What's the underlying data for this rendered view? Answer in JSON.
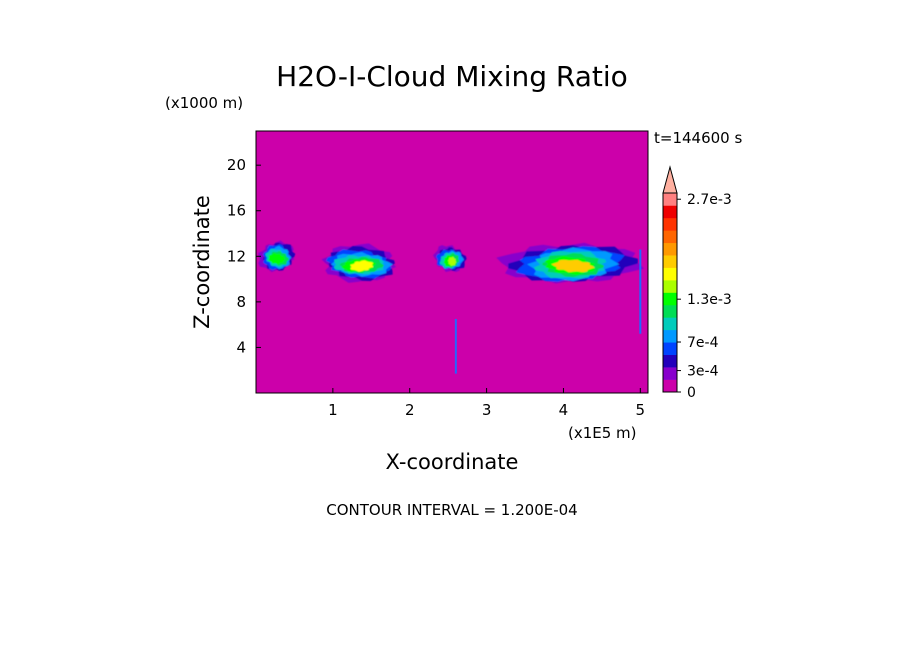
{
  "chart_data": {
    "type": "heatmap",
    "title": "H2O-I-Cloud Mixing Ratio",
    "xlabel": "X-coordinate",
    "ylabel": "Z-coordinate",
    "x_unit": "(x1E5 m)",
    "y_unit": "(x1000 m)",
    "time_label": "t=144600 s",
    "footer": "CONTOUR INTERVAL = 1.200E-04",
    "xlim": [
      0,
      5.1
    ],
    "ylim": [
      0,
      23
    ],
    "x_ticks": [
      1,
      2,
      3,
      4,
      5
    ],
    "y_ticks": [
      4,
      8,
      12,
      16,
      20
    ],
    "colorbar": {
      "ticks": [
        {
          "value": 0,
          "label": "0"
        },
        {
          "value": 0.0003,
          "label": "3e-4"
        },
        {
          "value": 0.0007,
          "label": "7e-4"
        },
        {
          "value": 0.0013,
          "label": "1.3e-3"
        },
        {
          "value": 0.0027,
          "label": "2.7e-3"
        }
      ],
      "colors": [
        "#cc00aa",
        "#8800cc",
        "#2200bb",
        "#0044ff",
        "#0099ff",
        "#00ccbb",
        "#00dd55",
        "#00ff00",
        "#aaff00",
        "#ffff00",
        "#ffcc00",
        "#ff9900",
        "#ff6600",
        "#ff3300",
        "#ee0000",
        "#ff8080"
      ],
      "extend": "max"
    },
    "background_color": "#cc00aa",
    "cloud_regions": [
      {
        "x": [
          0.0,
          0.55
        ],
        "z": [
          10.5,
          13.5
        ],
        "peak": "#00ff00"
      },
      {
        "x": [
          0.75,
          1.95
        ],
        "z": [
          9.6,
          13.2
        ],
        "peak": "#ffff00"
      },
      {
        "x": [
          2.3,
          2.75
        ],
        "z": [
          10.4,
          13.2
        ],
        "peak": "#aaff00"
      },
      {
        "x": [
          3.1,
          5.1
        ],
        "z": [
          9.2,
          13.6
        ],
        "peak": "#ffcc00"
      }
    ]
  }
}
